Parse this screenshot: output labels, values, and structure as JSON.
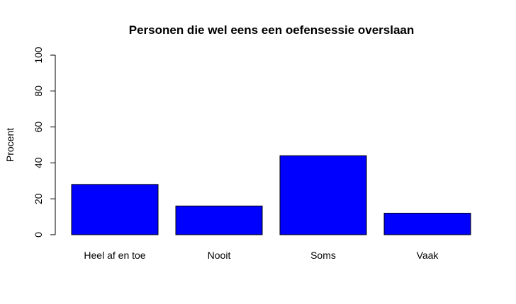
{
  "chart_data": {
    "type": "bar",
    "title": "Personen die wel eens een oefensessie overslaan",
    "xlabel": "",
    "ylabel": "Procent",
    "categories": [
      "Heel af en toe",
      "Nooit",
      "Soms",
      "Vaak"
    ],
    "values": [
      28,
      16,
      44,
      12
    ],
    "ylim": [
      0,
      100
    ],
    "yticks": [
      0,
      20,
      40,
      60,
      80,
      100
    ],
    "grid": false,
    "legend": "none",
    "bar_color": "#0000FF",
    "bar_border_color": "#000000"
  }
}
